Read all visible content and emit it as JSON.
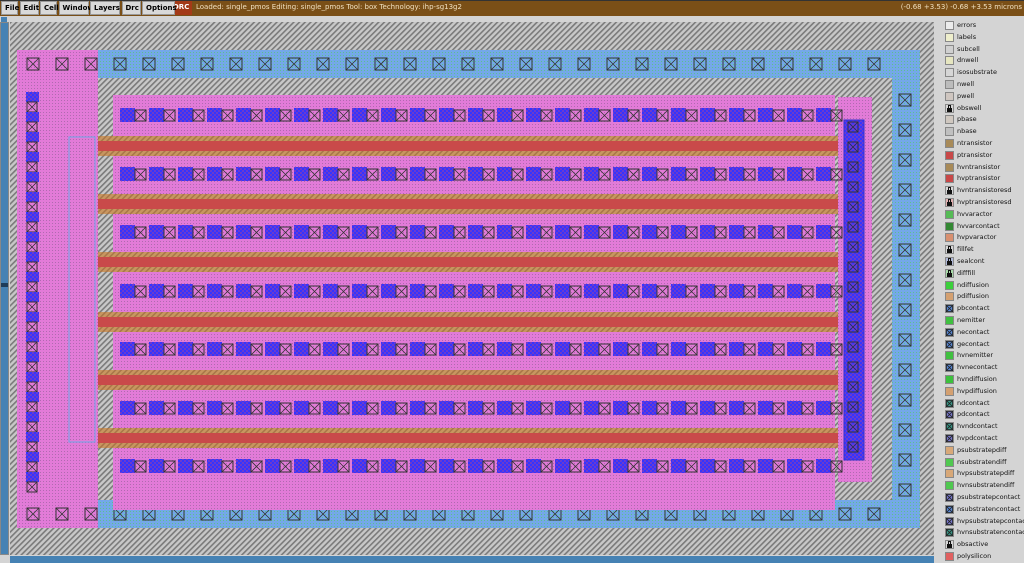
{
  "menu": [
    "File",
    "Edit",
    "Cell",
    "Window",
    "Layers",
    "Drc",
    "Options"
  ],
  "drc_label": "DRC",
  "status": "Loaded: single_pmos Editing: single_pmos Tool: box  Technology: ihp-sg13g2",
  "coords": "(-0.68 +3.53) -0.68 +3.53 microns",
  "colors": {
    "titlebar": "#7a4f17",
    "nwell_bg": "#bdbdbd",
    "pdiff": "#e57ad6",
    "nsub": "#6fa7e6",
    "poly": "#d24d4d",
    "ptransistor": "#c08a58",
    "contact_blue": "#3030ff"
  },
  "layers": [
    {
      "name": "errors",
      "color": "#ececec"
    },
    {
      "name": "labels",
      "color": "#eeeecc"
    },
    {
      "name": "subcell",
      "color": "#d0d0d0"
    },
    {
      "name": "dnwell",
      "color": "#e6e6c0"
    },
    {
      "name": "isosubstrate",
      "color": "#d6d6d6"
    },
    {
      "name": "nwell",
      "color": "#bcbcbc"
    },
    {
      "name": "pwell",
      "color": "#cfc6c0"
    },
    {
      "name": "obswell",
      "color": "#d6d6d6",
      "icon": "lock"
    },
    {
      "name": "pbase",
      "color": "#d0c8c0"
    },
    {
      "name": "nbase",
      "color": "#c0c0c0"
    },
    {
      "name": "ntransistor",
      "color": "#a88a58"
    },
    {
      "name": "ptransistor",
      "color": "#c84848"
    },
    {
      "name": "hvntransistor",
      "color": "#a88a58"
    },
    {
      "name": "hvptransistor",
      "color": "#c84848"
    },
    {
      "name": "hvntransistoresd",
      "color": "#d6d6d6",
      "icon": "lock"
    },
    {
      "name": "hvptransistoresd",
      "color": "#e0b0b0",
      "icon": "lock"
    },
    {
      "name": "hvvaractor",
      "color": "#55bb55"
    },
    {
      "name": "hvvarcontact",
      "color": "#338833"
    },
    {
      "name": "hvpvaractor",
      "color": "#d89070"
    },
    {
      "name": "fillfet",
      "color": "#d6d6d6",
      "icon": "lock"
    },
    {
      "name": "sealcont",
      "color": "#b0b8d8",
      "icon": "lock"
    },
    {
      "name": "difffill",
      "color": "#a8d8a8",
      "icon": "lock"
    },
    {
      "name": "ndiffusion",
      "color": "#3cd03c"
    },
    {
      "name": "pdiffusion",
      "color": "#d4a070"
    },
    {
      "name": "pbcontact",
      "color": "#5a8ad8",
      "icon": "x"
    },
    {
      "name": "nemitter",
      "color": "#40c040"
    },
    {
      "name": "necontact",
      "color": "#5a8ad8",
      "icon": "x"
    },
    {
      "name": "gecontact",
      "color": "#5a8ad8",
      "icon": "x"
    },
    {
      "name": "hvnemitter",
      "color": "#40c040"
    },
    {
      "name": "hvnecontact",
      "color": "#5a8ad8",
      "icon": "x"
    },
    {
      "name": "hvndiffusion",
      "color": "#3cc03c"
    },
    {
      "name": "hvpdiffusion",
      "color": "#d4a070"
    },
    {
      "name": "ndcontact",
      "color": "#3a9a8a",
      "icon": "x"
    },
    {
      "name": "pdcontact",
      "color": "#7a7ad0",
      "icon": "x"
    },
    {
      "name": "hvndcontact",
      "color": "#3a9a8a",
      "icon": "x"
    },
    {
      "name": "hvpdcontact",
      "color": "#7a7ad0",
      "icon": "x"
    },
    {
      "name": "psubstratepdiff",
      "color": "#d8a878"
    },
    {
      "name": "nsubstratendiff",
      "color": "#50c850"
    },
    {
      "name": "hvpsubstratepdiff",
      "color": "#d8a878"
    },
    {
      "name": "hvnsubstratendiff",
      "color": "#50c850"
    },
    {
      "name": "psubstratepcontact",
      "color": "#7a7ad0",
      "icon": "x"
    },
    {
      "name": "nsubstratencontact",
      "color": "#5a8ad8",
      "icon": "x"
    },
    {
      "name": "hvpsubstratepcontact",
      "color": "#7a7ad0",
      "icon": "x"
    },
    {
      "name": "hvnsubstratencontact",
      "color": "#3a9a8a",
      "icon": "x"
    },
    {
      "name": "obsactive",
      "color": "#d6d6d6",
      "icon": "lock"
    },
    {
      "name": "polysilicon",
      "color": "#e06060"
    }
  ]
}
